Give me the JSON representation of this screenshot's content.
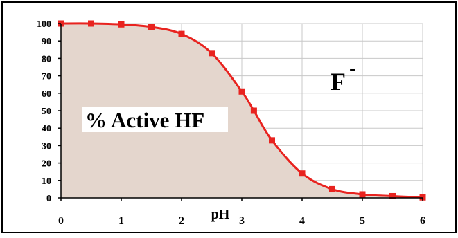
{
  "chart_data": {
    "type": "area",
    "x": [
      0,
      0.5,
      1,
      1.5,
      2,
      2.5,
      3,
      3.2,
      3.5,
      4,
      4.5,
      5,
      5.5,
      6
    ],
    "y": [
      100,
      100,
      99.5,
      98,
      94,
      83,
      61,
      50,
      33,
      14,
      5,
      2,
      1,
      0.3
    ],
    "xlim": [
      0,
      6
    ],
    "ylim": [
      0,
      100
    ],
    "xticks": [
      "0",
      "1",
      "2",
      "3",
      "4",
      "5",
      "6"
    ],
    "yticks": [
      "0",
      "10",
      "20",
      "30",
      "40",
      "50",
      "60",
      "70",
      "80",
      "90",
      "100"
    ],
    "xlabel": "pH",
    "grid": true,
    "annotations": {
      "area_label": "% Active HF",
      "species_label": "F",
      "species_charge": "-"
    },
    "colors": {
      "line": "#e8231f",
      "fill": "#e4d6cd",
      "grid": "#c8c8c8"
    }
  }
}
